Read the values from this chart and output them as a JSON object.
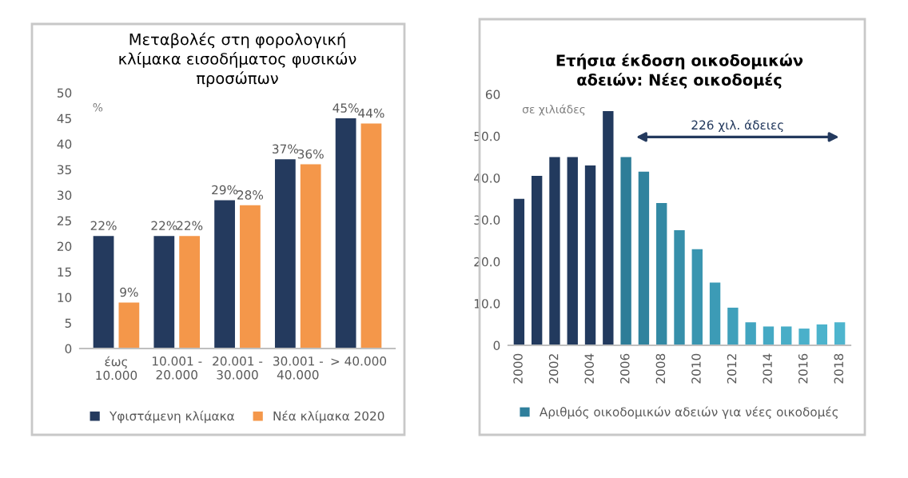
{
  "chart_data": [
    {
      "type": "bar",
      "title": "Μεταβολές στη φορολογική\nκλίμακα εισοδήματος φυσικών\nπροσώπων",
      "ylabel": "%",
      "categories": [
        "έως\n10.000",
        "10.001 -\n20.000",
        "20.001 -\n30.000",
        "30.001 -\n40.000",
        "> 40.000"
      ],
      "series": [
        {
          "name": "Υφιστάμενη κλίμακα",
          "color": "#243a5e",
          "values": [
            22,
            22,
            29,
            37,
            45
          ],
          "value_labels": [
            "22%",
            "22%",
            "29%",
            "37%",
            "45%"
          ]
        },
        {
          "name": "Νέα κλίμακα 2020",
          "color": "#f4974a",
          "values": [
            9,
            22,
            28,
            36,
            44
          ],
          "value_labels": [
            "9%",
            "22%",
            "28%",
            "36%",
            "44%"
          ]
        }
      ],
      "ylim": [
        0,
        50
      ],
      "yticks": [
        0,
        5,
        10,
        15,
        20,
        25,
        30,
        35,
        40,
        45,
        50
      ],
      "grid": false,
      "legend": "bottom"
    },
    {
      "type": "bar",
      "title": "Ετήσια έκδοση οικοδομικών\nαδειών: Νέες οικοδομές",
      "ylabel": "σε χιλιάδες",
      "categories": [
        "2000",
        null,
        "2002",
        null,
        "2004",
        null,
        "2006",
        null,
        "2008",
        null,
        "2010",
        null,
        "2012",
        null,
        "2014",
        null,
        "2016",
        null,
        "2018"
      ],
      "series": [
        {
          "name": "Αριθμός οικοδομικών αδειών για νέες οικοδομές",
          "color": "#2f7f9c",
          "colors": [
            "#223a5e",
            "#223a5e",
            "#223a5e",
            "#223a5e",
            "#223a5e",
            "#223a5e",
            "#2d7d98",
            "#30839e",
            "#3389a4",
            "#368faa",
            "#3995b0",
            "#3c9bb6",
            "#3fa0bb",
            "#42a5c0",
            "#45a9c4",
            "#48adc7",
            "#4ab0ca",
            "#4cb3cc",
            "#4eb5ce"
          ],
          "values": [
            35,
            40.5,
            45,
            45,
            43,
            56,
            45,
            41.5,
            34,
            27.5,
            23,
            15,
            9,
            5.5,
            4.5,
            4.5,
            4,
            5,
            5.5
          ]
        }
      ],
      "annotations": [
        "226 χιλ. άδειες"
      ],
      "ylim": [
        0,
        60
      ],
      "yticks": [
        {
          "value": 0,
          "label": "0"
        },
        {
          "value": 10,
          "label": "10.0"
        },
        {
          "value": 20,
          "label": "20.0"
        },
        {
          "value": 30,
          "label": "30.0"
        },
        {
          "value": 40,
          "label": "40.0"
        },
        {
          "value": 50,
          "label": "50.0"
        },
        {
          "value": 60,
          "label": "60"
        }
      ],
      "grid": false,
      "legend": "bottom"
    }
  ]
}
